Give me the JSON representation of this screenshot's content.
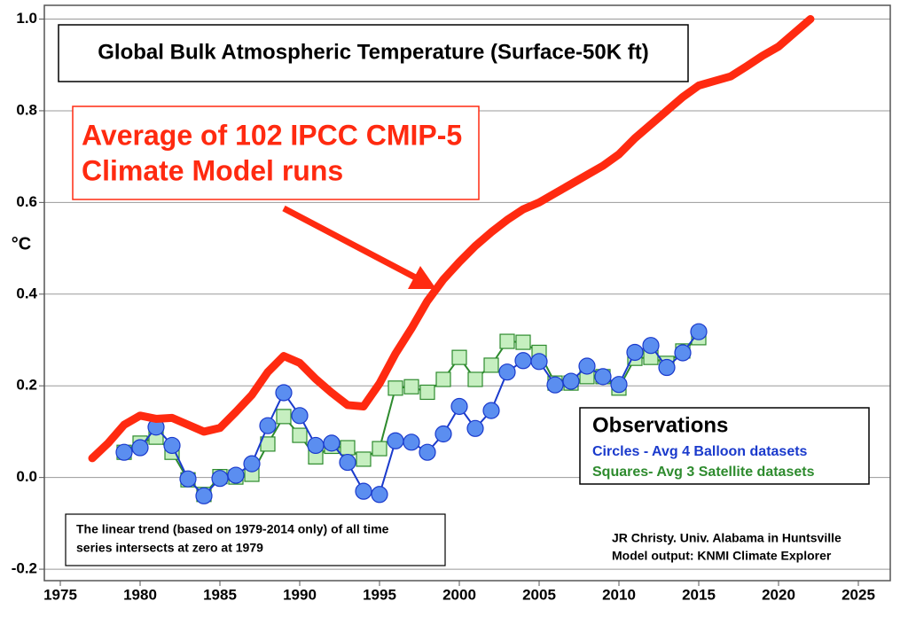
{
  "chart_data": {
    "type": "line",
    "title": "Global Bulk Atmospheric Temperature (Surface-50K ft)",
    "y_label": "°C",
    "xlim": [
      1974,
      2027
    ],
    "ylim": [
      -0.225,
      1.03
    ],
    "xticks": [
      1975,
      1980,
      1985,
      1990,
      1995,
      2000,
      2005,
      2010,
      2015,
      2020,
      2025
    ],
    "yticks": [
      {
        "value": -0.2,
        "label": "-0.2"
      },
      {
        "value": 0,
        "label": "0.0"
      },
      0.2,
      0.4,
      0.6,
      0.8,
      {
        "value": 1,
        "label": "1.0"
      }
    ],
    "grid": true,
    "legend_title": "Observations",
    "series": [
      {
        "name": "Squares- Avg 3 Satellite datasets",
        "color": "#2e8b2e",
        "marker": "square",
        "x": [
          1979,
          1980,
          1981,
          1982,
          1983,
          1984,
          1985,
          1986,
          1987,
          1988,
          1989,
          1990,
          1991,
          1992,
          1993,
          1994,
          1995,
          1996,
          1997,
          1998,
          1999,
          2000,
          2001,
          2002,
          2003,
          2004,
          2005,
          2006,
          2007,
          2008,
          2009,
          2010,
          2011,
          2012,
          2013,
          2014,
          2015
        ],
        "values": [
          0.055,
          0.075,
          0.088,
          0.055,
          -0.005,
          -0.037,
          0.002,
          0.001,
          0.007,
          0.073,
          0.133,
          0.092,
          0.045,
          0.068,
          0.065,
          0.04,
          0.063,
          0.195,
          0.198,
          0.186,
          0.214,
          0.262,
          0.214,
          0.245,
          0.297,
          0.295,
          0.273,
          0.206,
          0.206,
          0.22,
          0.22,
          0.195,
          0.26,
          0.262,
          0.249,
          0.276,
          0.305
        ]
      },
      {
        "name": "Circles - Avg 4 Balloon datasets",
        "color": "#1a3acc",
        "marker": "circle",
        "x": [
          1979,
          1980,
          1981,
          1982,
          1983,
          1984,
          1985,
          1986,
          1987,
          1988,
          1989,
          1990,
          1991,
          1992,
          1993,
          1994,
          1995,
          1996,
          1997,
          1998,
          1999,
          2000,
          2001,
          2002,
          2003,
          2004,
          2005,
          2006,
          2007,
          2008,
          2009,
          2010,
          2011,
          2012,
          2013,
          2014,
          2015
        ],
        "values": [
          0.055,
          0.065,
          0.11,
          0.07,
          -0.003,
          -0.04,
          -0.002,
          0.005,
          0.03,
          0.113,
          0.185,
          0.135,
          0.07,
          0.075,
          0.033,
          -0.03,
          -0.037,
          0.08,
          0.077,
          0.055,
          0.095,
          0.155,
          0.107,
          0.146,
          0.23,
          0.255,
          0.253,
          0.202,
          0.21,
          0.243,
          0.22,
          0.203,
          0.273,
          0.288,
          0.24,
          0.272,
          0.318
        ]
      },
      {
        "color": "#ff2a10",
        "marker": "none",
        "x": [
          1977,
          1978,
          1979,
          1980,
          1981,
          1982,
          1983,
          1984,
          1985,
          1986,
          1987,
          1988,
          1989,
          1990,
          1991,
          1992,
          1993,
          1994,
          1995,
          1996,
          1997,
          1998,
          1999,
          2000,
          2001,
          2002,
          2003,
          2004,
          2005,
          2006,
          2007,
          2008,
          2009,
          2010,
          2011,
          2012,
          2013,
          2014,
          2015,
          2016,
          2017,
          2018,
          2019,
          2020,
          2021,
          2022
        ],
        "values": [
          0.042,
          0.075,
          0.115,
          0.135,
          0.128,
          0.13,
          0.115,
          0.1,
          0.108,
          0.143,
          0.18,
          0.23,
          0.265,
          0.25,
          0.215,
          0.185,
          0.158,
          0.155,
          0.205,
          0.27,
          0.325,
          0.385,
          0.432,
          0.47,
          0.505,
          0.535,
          0.562,
          0.585,
          0.6,
          0.62,
          0.64,
          0.66,
          0.68,
          0.705,
          0.74,
          0.77,
          0.8,
          0.83,
          0.855,
          0.865,
          0.875,
          0.897,
          0.92,
          0.94,
          0.97,
          1.0
        ]
      }
    ],
    "model_label": [
      "Average of 102 IPCC CMIP-5",
      "Climate Model runs"
    ],
    "note": [
      "The linear trend (based on 1979-2014 only) of all time",
      "series intersects at zero at 1979"
    ],
    "credits": [
      "JR Christy. Univ. Alabama in Huntsville",
      "Model output: KNMI Climate Explorer"
    ]
  }
}
